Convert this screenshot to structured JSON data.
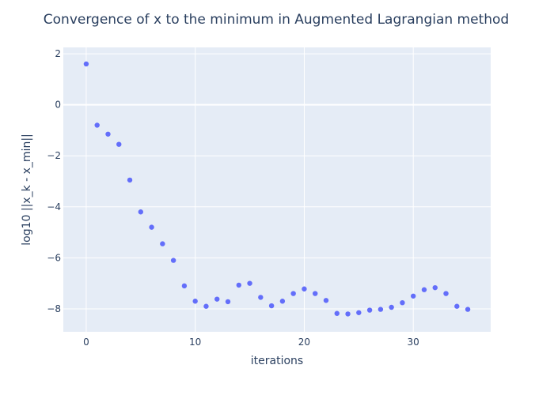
{
  "chart_data": {
    "type": "scatter",
    "title": "Convergence of x to the minimum in Augmented Lagrangian method",
    "xlabel": "iterations",
    "ylabel": "log10 ||x_k - x_min||",
    "xlim": [
      -2.1,
      37.1
    ],
    "ylim": [
      -8.9,
      2.25
    ],
    "xticks": [
      0,
      10,
      20,
      30
    ],
    "yticks": [
      2,
      0,
      -2,
      -4,
      -6,
      -8
    ],
    "xtick_labels": [
      "0",
      "10",
      "20",
      "30"
    ],
    "ytick_labels": [
      "2",
      "0",
      "−2",
      "−4",
      "−6",
      "−8"
    ],
    "grid": true,
    "marker_color": "#636efa",
    "plot_bgcolor": "#e5ecf6",
    "x": [
      0,
      1,
      2,
      3,
      4,
      5,
      6,
      7,
      8,
      9,
      10,
      11,
      12,
      13,
      14,
      15,
      16,
      17,
      18,
      19,
      20,
      21,
      22,
      23,
      24,
      25,
      26,
      27,
      28,
      29,
      30,
      31,
      32,
      33,
      34,
      35
    ],
    "y": [
      1.6,
      -0.8,
      -1.15,
      -1.55,
      -2.95,
      -4.2,
      -4.8,
      -5.45,
      -6.1,
      -7.1,
      -7.7,
      -7.9,
      -7.62,
      -7.72,
      -7.07,
      -7.0,
      -7.55,
      -7.88,
      -7.7,
      -7.4,
      -7.22,
      -7.4,
      -7.67,
      -8.18,
      -8.2,
      -8.15,
      -8.05,
      -8.02,
      -7.94,
      -7.76,
      -7.5,
      -7.25,
      -7.17,
      -7.4,
      -7.9,
      -8.02
    ]
  }
}
